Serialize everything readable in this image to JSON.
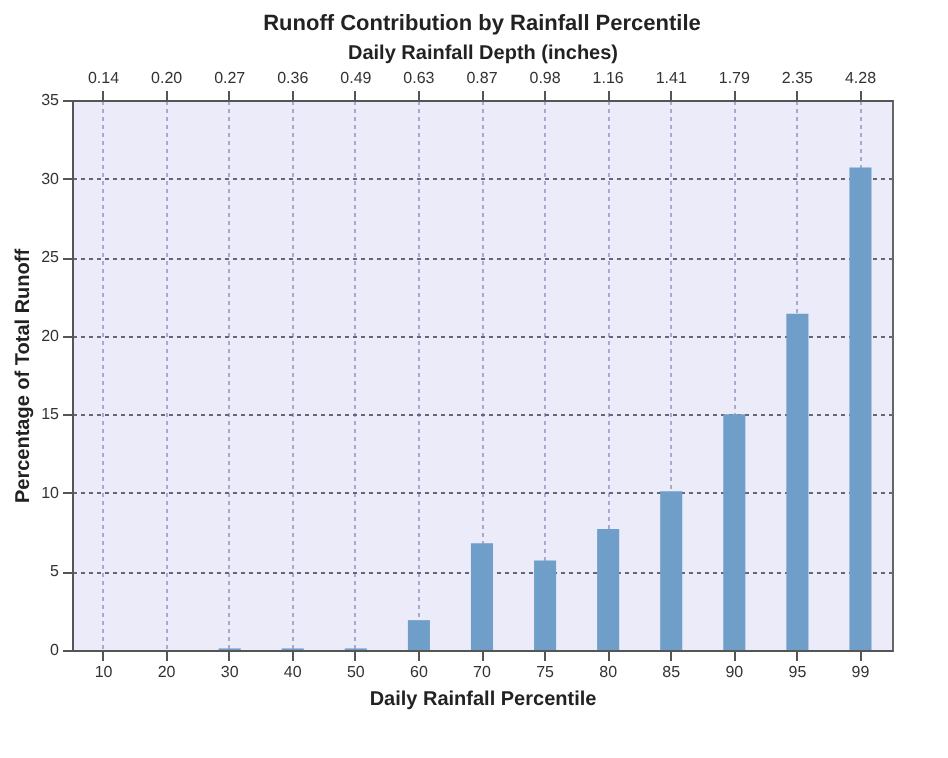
{
  "chart_data": {
    "type": "bar",
    "title": "Runoff Contribution by Rainfall Percentile",
    "xlabel": "Daily Rainfall Percentile",
    "ylabel": "Percentage of Total Runoff",
    "x2label": "Daily Rainfall Depth (inches)",
    "categories": [
      "10",
      "20",
      "30",
      "40",
      "50",
      "60",
      "70",
      "75",
      "80",
      "85",
      "90",
      "95",
      "99"
    ],
    "annotations": [
      "0.14",
      "0.20",
      "0.27",
      "0.36",
      "0.49",
      "0.63",
      "0.87",
      "0.98",
      "1.16",
      "1.41",
      "1.79",
      "2.35",
      "4.28"
    ],
    "values": [
      0,
      0,
      0.1,
      0.1,
      0.1,
      1.9,
      6.8,
      5.7,
      7.7,
      10.1,
      15.0,
      21.4,
      30.7
    ],
    "color": "#6f9fc8",
    "ylim": [
      0,
      35
    ],
    "yticks": [
      0,
      5,
      10,
      15,
      20,
      25,
      30,
      35
    ],
    "grid": true
  }
}
